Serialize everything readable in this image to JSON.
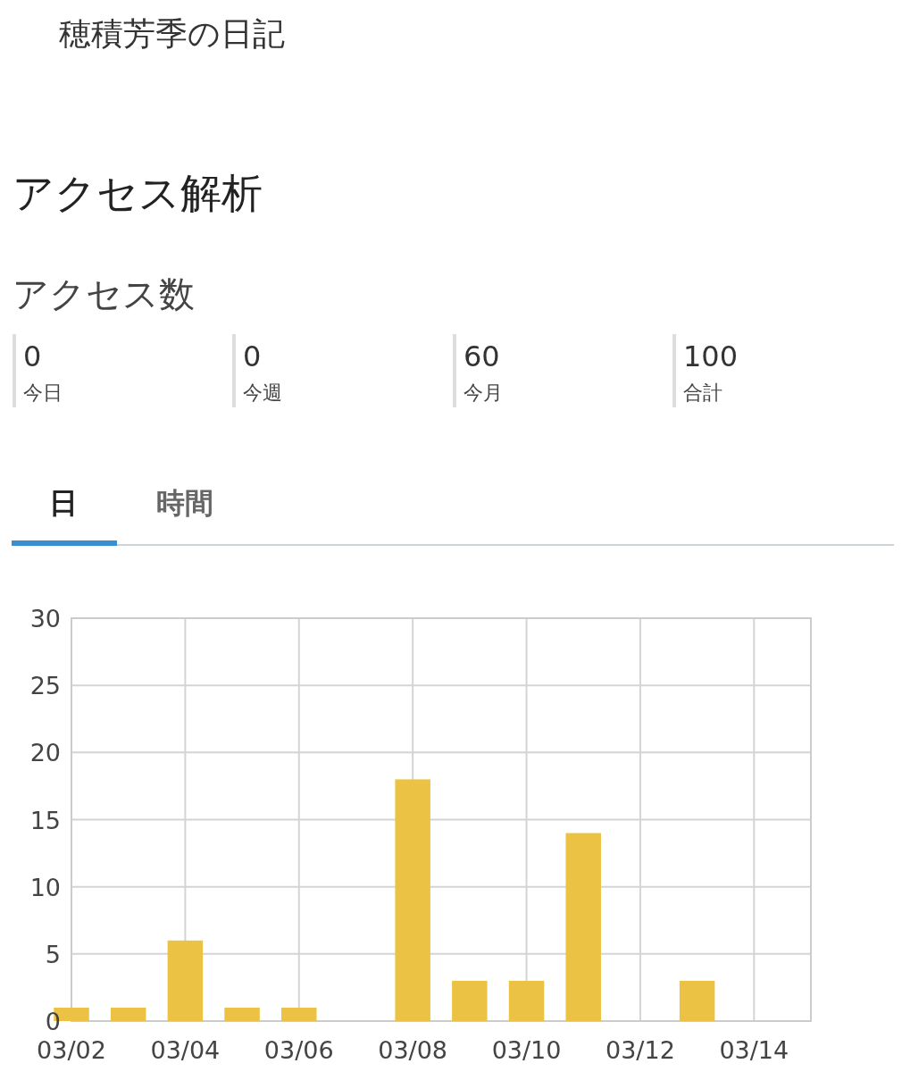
{
  "chart_data": {
    "type": "bar",
    "title": "穂積芳季の日記",
    "subtitle": "アクセス解析",
    "annotations": [
      "アクセス数",
      "0",
      "今日",
      "0",
      "今週",
      "60",
      "今月",
      "100",
      "合計",
      "日",
      "時間"
    ],
    "x": [
      "--03-02",
      "--03-03",
      "--03-04",
      "--03-05",
      "--03-06",
      "--03-07",
      "--03-08",
      "--03-09",
      "--03-10",
      "--03-11",
      "--03-12",
      "--03-13",
      "--03-14"
    ],
    "values": [
      1,
      1,
      6,
      1,
      1,
      0,
      18,
      3,
      3,
      14,
      0,
      3,
      0
    ],
    "color": "#ebc244",
    "xlim": [
      "--03-02",
      "--03-15"
    ],
    "xticks": [
      {
        "value": "--03-02",
        "label": "03/02"
      },
      {
        "value": "--03-04",
        "label": "03/04"
      },
      {
        "value": "--03-06",
        "label": "03/06"
      },
      {
        "value": "--03-08",
        "label": "03/08"
      },
      {
        "value": "--03-10",
        "label": "03/10"
      },
      {
        "value": "--03-12",
        "label": "03/12"
      },
      {
        "value": "--03-14",
        "label": "03/14"
      }
    ],
    "ylim": [
      0,
      30
    ],
    "yticks": [
      0,
      5,
      10,
      15,
      20,
      25,
      30
    ],
    "grid": true
  }
}
